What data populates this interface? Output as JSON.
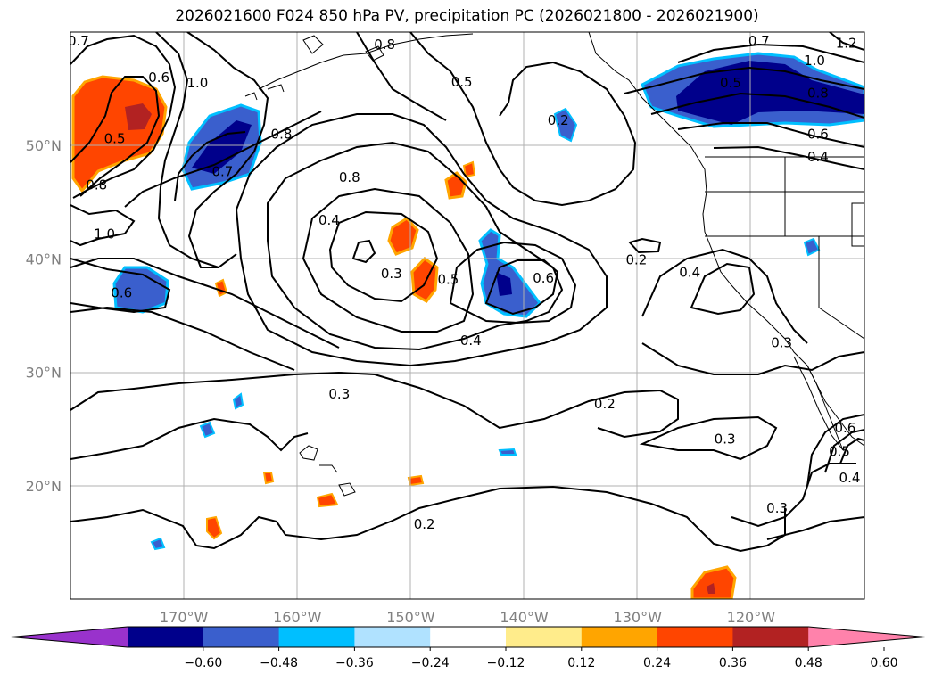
{
  "title": "2026021600 F024 850 hPa PV, precipitation PC (2026021800 - 2026021900)",
  "map": {
    "lon_range": [
      -180,
      -110
    ],
    "lat_range": [
      10,
      60
    ],
    "lon_ticks": [
      {
        "value": -170,
        "label": "170°W"
      },
      {
        "value": -160,
        "label": "160°W"
      },
      {
        "value": -150,
        "label": "150°W"
      },
      {
        "value": -140,
        "label": "140°W"
      },
      {
        "value": -130,
        "label": "130°W"
      },
      {
        "value": -120,
        "label": "120°W"
      }
    ],
    "lat_ticks": [
      {
        "value": 20,
        "label": "20°N"
      },
      {
        "value": 30,
        "label": "30°N"
      },
      {
        "value": 40,
        "label": "40°N"
      },
      {
        "value": 50,
        "label": "50°N"
      }
    ],
    "gridlines": true,
    "contour_labels": [
      {
        "text": "0.7",
        "lon": -179.3,
        "lat": 59.2
      },
      {
        "text": "0.6",
        "lon": -172.2,
        "lat": 56.0
      },
      {
        "text": "0.5",
        "lon": -176.1,
        "lat": 50.6
      },
      {
        "text": "0.8",
        "lon": -177.7,
        "lat": 46.5
      },
      {
        "text": "1.0",
        "lon": -177.0,
        "lat": 42.2
      },
      {
        "text": "0.6",
        "lon": -175.5,
        "lat": 37.0
      },
      {
        "text": "1.0",
        "lon": -168.8,
        "lat": 55.5
      },
      {
        "text": "0.7",
        "lon": -166.6,
        "lat": 47.7
      },
      {
        "text": "0.8",
        "lon": -161.4,
        "lat": 51.0
      },
      {
        "text": "0.8",
        "lon": -152.3,
        "lat": 58.9
      },
      {
        "text": "0.5",
        "lon": -145.5,
        "lat": 55.6
      },
      {
        "text": "0.8",
        "lon": -155.4,
        "lat": 47.2
      },
      {
        "text": "0.4",
        "lon": -157.2,
        "lat": 43.4
      },
      {
        "text": "0.3",
        "lon": -151.7,
        "lat": 38.7
      },
      {
        "text": "0.5",
        "lon": -146.7,
        "lat": 38.2
      },
      {
        "text": "0.6",
        "lon": -138.3,
        "lat": 38.3
      },
      {
        "text": "0.4",
        "lon": -144.7,
        "lat": 32.8
      },
      {
        "text": "0.3",
        "lon": -156.3,
        "lat": 28.1
      },
      {
        "text": "0.2",
        "lon": -148.8,
        "lat": 16.6
      },
      {
        "text": "0.2",
        "lon": -137.0,
        "lat": 52.2
      },
      {
        "text": "0.2",
        "lon": -130.1,
        "lat": 39.9
      },
      {
        "text": "0.4",
        "lon": -125.4,
        "lat": 38.8
      },
      {
        "text": "0.2",
        "lon": -132.9,
        "lat": 27.2
      },
      {
        "text": "0.3",
        "lon": -122.3,
        "lat": 24.1
      },
      {
        "text": "0.3",
        "lon": -117.3,
        "lat": 32.6
      },
      {
        "text": "0.3",
        "lon": -117.7,
        "lat": 18.0
      },
      {
        "text": "0.4",
        "lon": -111.3,
        "lat": 20.7
      },
      {
        "text": "0.5",
        "lon": -112.2,
        "lat": 23.0
      },
      {
        "text": "0.6",
        "lon": -111.7,
        "lat": 25.1
      },
      {
        "text": "0.7",
        "lon": -119.3,
        "lat": 59.2
      },
      {
        "text": "0.5",
        "lon": -121.8,
        "lat": 55.5
      },
      {
        "text": "1.0",
        "lon": -114.4,
        "lat": 57.5
      },
      {
        "text": "0.8",
        "lon": -114.1,
        "lat": 54.6
      },
      {
        "text": "0.6",
        "lon": -114.1,
        "lat": 51.0
      },
      {
        "text": "0.4",
        "lon": -114.1,
        "lat": 49.0
      },
      {
        "text": "1.2",
        "lon": -111.6,
        "lat": 59.0
      }
    ]
  },
  "colorbar": {
    "colors": [
      "#9932cc",
      "#00008b",
      "#3a5fcd",
      "#00bfff",
      "#b0e2ff",
      "#ffffff",
      "#ffec8b",
      "#ffa500",
      "#ff4500",
      "#b22222",
      "#ff82ab"
    ],
    "tick_labels": [
      "−0.60",
      "−0.48",
      "−0.36",
      "−0.24",
      "−0.12",
      "0.12",
      "0.24",
      "0.36",
      "0.48",
      "0.60"
    ]
  }
}
